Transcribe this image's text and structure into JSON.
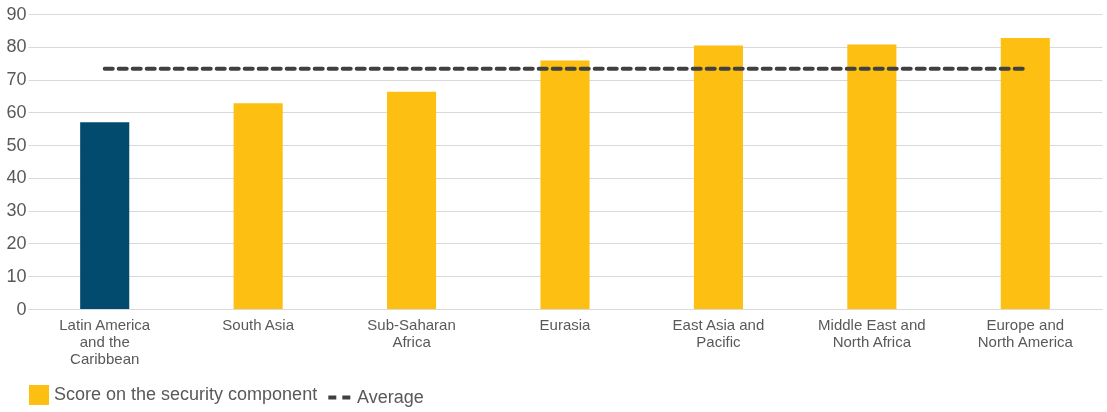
{
  "chart_data": {
    "type": "bar",
    "categories": [
      "Latin America and the Caribbean",
      "South Asia",
      "Sub-Saharan Africa",
      "Eurasia",
      "East Asia and Pacific",
      "Middle East and North Africa",
      "Europe and North America"
    ],
    "series": [
      {
        "name": "Score on the security component",
        "color": "#fdbf11",
        "colors": [
          "#024b6f",
          "#fdbf11",
          "#fdbf11",
          "#fdbf11",
          "#fdbf11",
          "#fdbf11",
          "#fdbf11"
        ],
        "values": [
          57.0,
          62.8,
          66.3,
          75.8,
          80.4,
          80.7,
          82.7
        ]
      },
      {
        "name": "Average",
        "type": "line",
        "color": "#404040",
        "line_style": "dashed",
        "values": [
          73.3,
          73.3,
          73.3,
          73.3,
          73.3,
          73.3,
          73.3
        ]
      }
    ],
    "ylim": [
      0,
      90
    ],
    "yticks": [
      0,
      10,
      20,
      30,
      40,
      50,
      60,
      70,
      80,
      90
    ],
    "grid": "y",
    "legend": "bottom"
  }
}
